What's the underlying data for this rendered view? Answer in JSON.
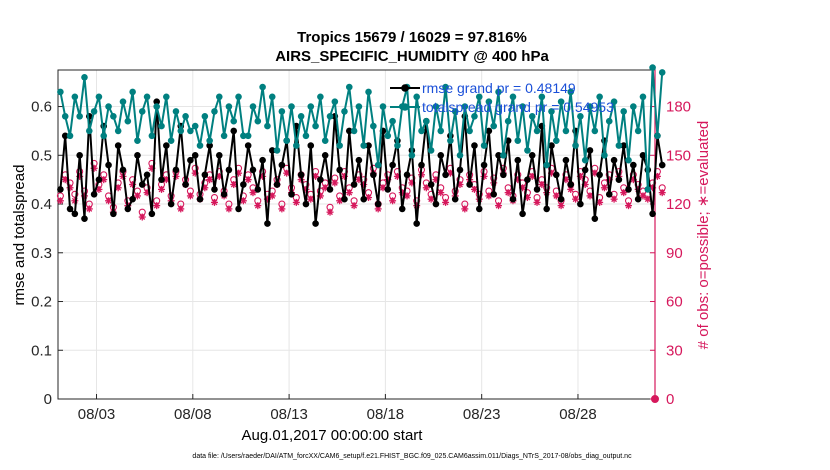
{
  "chart_data": {
    "type": "line",
    "title_line1": "Tropics 15679 / 16029 = 97.816%",
    "title_line2": "AIRS_SPECIFIC_HUMIDITY @ 400 hPa",
    "xlabel": "Aug.01,2017 00:00:00 start",
    "ylabel_left": "rmse and totalspread",
    "ylabel_right": "# of obs: o=possible; ∗=evaluated",
    "x_range_days": [
      0.5,
      31.5
    ],
    "xticks": [
      {
        "day": 2.5,
        "label": "08/03"
      },
      {
        "day": 7.5,
        "label": "08/08"
      },
      {
        "day": 12.5,
        "label": "08/13"
      },
      {
        "day": 17.5,
        "label": "08/18"
      },
      {
        "day": 22.5,
        "label": "08/23"
      },
      {
        "day": 27.5,
        "label": "08/28"
      }
    ],
    "ylim_left": [
      0,
      0.675
    ],
    "yticks_left": [
      "0",
      "0.1",
      "0.2",
      "0.3",
      "0.4",
      "0.5",
      "0.6"
    ],
    "ytick_values_left": [
      0,
      0.1,
      0.2,
      0.3,
      0.4,
      0.5,
      0.6
    ],
    "ylim_right": [
      0,
      202.5
    ],
    "yticks_right": [
      "0",
      "30",
      "60",
      "90",
      "120",
      "150",
      "180"
    ],
    "ytick_values_right": [
      0,
      30,
      60,
      90,
      120,
      150,
      180
    ],
    "legend": {
      "location": "top-right",
      "entries": [
        "rmse grand pr = 0.48149",
        "totalspread grand pr = 0.54953"
      ]
    },
    "colors": {
      "rmse": "#000000",
      "totalspread": "#008080",
      "obs": "#d6185c",
      "grid": "#e6e6e6",
      "legend_text": "#1a4fd8"
    },
    "series": [
      {
        "name": "rmse",
        "axis": "left",
        "values": [
          0.43,
          0.54,
          0.39,
          0.38,
          0.5,
          0.37,
          0.58,
          0.42,
          0.45,
          0.56,
          0.48,
          0.38,
          0.52,
          0.47,
          0.39,
          0.41,
          0.5,
          0.44,
          0.46,
          0.38,
          0.61,
          0.45,
          0.52,
          0.4,
          0.47,
          0.56,
          0.44,
          0.49,
          0.5,
          0.41,
          0.46,
          0.52,
          0.43,
          0.5,
          0.42,
          0.47,
          0.55,
          0.39,
          0.44,
          0.52,
          0.47,
          0.43,
          0.49,
          0.36,
          0.51,
          0.44,
          0.48,
          0.53,
          0.42,
          0.56,
          0.46,
          0.4,
          0.52,
          0.36,
          0.45,
          0.5,
          0.43,
          0.58,
          0.47,
          0.41,
          0.55,
          0.44,
          0.49,
          0.41,
          0.52,
          0.46,
          0.4,
          0.55,
          0.43,
          0.48,
          0.53,
          0.39,
          0.46,
          0.51,
          0.36,
          0.48,
          0.57,
          0.44,
          0.4,
          0.5,
          0.46,
          0.54,
          0.41,
          0.47,
          0.58,
          0.44,
          0.52,
          0.39,
          0.48,
          0.55,
          0.42,
          0.5,
          0.46,
          0.53,
          0.41,
          0.49,
          0.38,
          0.45,
          0.5,
          0.43,
          0.56,
          0.39,
          0.52,
          0.46,
          0.41,
          0.49,
          0.44,
          0.55,
          0.4,
          0.47,
          0.51,
          0.37,
          0.46,
          0.53,
          0.42,
          0.49,
          0.45,
          0.52,
          0.43,
          0.48,
          0.41,
          0.5,
          0.47,
          0.38,
          0.54,
          0.48
        ]
      },
      {
        "name": "totalspread",
        "axis": "left",
        "values": [
          0.63,
          0.58,
          0.54,
          0.62,
          0.58,
          0.66,
          0.55,
          0.59,
          0.62,
          0.54,
          0.6,
          0.58,
          0.55,
          0.61,
          0.57,
          0.63,
          0.53,
          0.59,
          0.62,
          0.54,
          0.6,
          0.56,
          0.62,
          0.53,
          0.59,
          0.55,
          0.58,
          0.55,
          0.56,
          0.52,
          0.58,
          0.53,
          0.59,
          0.62,
          0.54,
          0.6,
          0.57,
          0.62,
          0.54,
          0.54,
          0.6,
          0.57,
          0.64,
          0.56,
          0.62,
          0.51,
          0.59,
          0.53,
          0.6,
          0.52,
          0.58,
          0.54,
          0.6,
          0.56,
          0.62,
          0.53,
          0.58,
          0.61,
          0.52,
          0.59,
          0.64,
          0.55,
          0.6,
          0.52,
          0.63,
          0.56,
          0.48,
          0.6,
          0.54,
          0.57,
          0.52,
          0.6,
          0.64,
          0.5,
          0.62,
          0.55,
          0.57,
          0.51,
          0.6,
          0.55,
          0.64,
          0.53,
          0.59,
          0.5,
          0.6,
          0.55,
          0.58,
          0.62,
          0.52,
          0.61,
          0.56,
          0.63,
          0.5,
          0.57,
          0.62,
          0.53,
          0.6,
          0.51,
          0.58,
          0.55,
          0.62,
          0.48,
          0.59,
          0.53,
          0.61,
          0.55,
          0.63,
          0.52,
          0.58,
          0.49,
          0.6,
          0.55,
          0.62,
          0.5,
          0.57,
          0.61,
          0.52,
          0.59,
          0.49,
          0.6,
          0.55,
          0.62,
          0.43,
          0.68,
          0.54,
          0.67
        ]
      },
      {
        "name": "obs_possible",
        "axis": "right",
        "marker": "circle",
        "values": [
          125,
          138,
          133,
          126,
          140,
          128,
          120,
          145,
          132,
          138,
          125,
          118,
          133,
          140,
          122,
          135,
          128,
          115,
          130,
          145,
          122,
          132,
          138,
          125,
          140,
          120,
          135,
          128,
          142,
          126,
          133,
          138,
          124,
          140,
          128,
          120,
          135,
          142,
          125,
          138,
          130,
          122,
          140,
          126,
          128,
          135,
          120,
          142,
          130,
          124,
          138,
          132,
          126,
          140,
          128,
          133,
          118,
          136,
          125,
          140,
          130,
          122,
          138,
          135,
          127,
          142,
          120,
          133,
          138,
          125,
          140,
          130,
          128,
          136,
          122,
          141,
          133,
          126,
          138,
          130,
          124,
          142,
          128,
          135,
          120,
          138,
          132,
          126,
          140,
          128,
          136,
          122,
          142,
          130,
          125,
          138,
          133,
          127,
          140,
          124,
          135,
          130,
          142,
          128,
          122,
          138,
          132,
          126,
          140,
          135,
          128,
          142,
          124,
          133,
          138,
          126,
          140,
          130,
          122,
          138,
          132,
          128,
          126,
          133,
          140,
          130
        ]
      },
      {
        "name": "obs_evaluated",
        "axis": "right",
        "marker": "star",
        "values": [
          122,
          135,
          130,
          122,
          137,
          125,
          117,
          142,
          129,
          135,
          122,
          115,
          130,
          137,
          119,
          132,
          125,
          112,
          127,
          142,
          119,
          129,
          135,
          122,
          137,
          117,
          132,
          125,
          139,
          123,
          130,
          135,
          121,
          137,
          125,
          117,
          132,
          139,
          122,
          135,
          127,
          119,
          137,
          123,
          125,
          132,
          117,
          139,
          127,
          121,
          135,
          129,
          123,
          137,
          125,
          130,
          115,
          133,
          122,
          137,
          127,
          119,
          135,
          132,
          124,
          139,
          117,
          130,
          135,
          122,
          137,
          127,
          125,
          133,
          119,
          138,
          130,
          123,
          135,
          127,
          121,
          139,
          125,
          132,
          117,
          135,
          129,
          123,
          137,
          125,
          133,
          119,
          139,
          127,
          122,
          135,
          130,
          124,
          137,
          121,
          132,
          127,
          139,
          125,
          119,
          135,
          129,
          123,
          137,
          132,
          125,
          139,
          121,
          130,
          135,
          123,
          137,
          127,
          119,
          135,
          129,
          125,
          123,
          130,
          137,
          127
        ]
      }
    ]
  },
  "footer": {
    "data_file": "data file: /Users/raeder/DAI/ATM_forcXX/CAM6_setup/f.e21.FHIST_BGC.f09_025.CAM6assim.011/Diags_NTrS_2017-08/obs_diag_output.nc"
  }
}
